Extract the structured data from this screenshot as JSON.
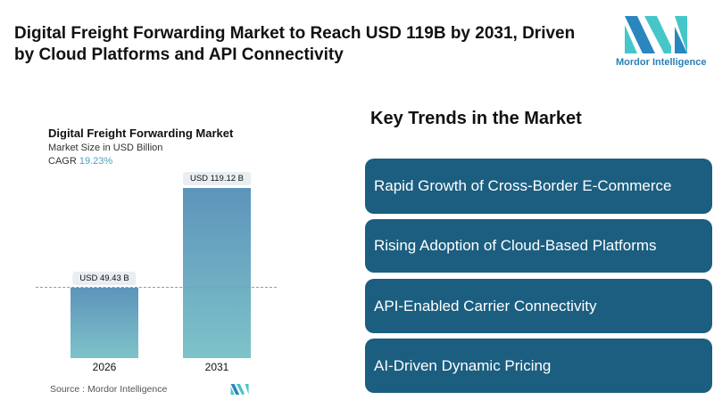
{
  "header": {
    "title": "Digital Freight Forwarding Market to Reach USD 119B by 2031, Driven by Cloud Platforms and API Connectivity",
    "logo_text": "Mordor Intelligence"
  },
  "chart_data": {
    "type": "bar",
    "title": "Digital Freight Forwarding Market",
    "subtitle": "Market Size in USD Billion",
    "cagr_label": "CAGR",
    "cagr_value": "19.23%",
    "categories": [
      "2026",
      "2031"
    ],
    "values": [
      49.43,
      119.12
    ],
    "data_labels": [
      "USD 49.43 B",
      "USD 119.12 B"
    ],
    "source": "Source :  Mordor Intelligence",
    "colors": {
      "bar_top": "#5d94bb",
      "bar_bottom": "#7ec3c9"
    }
  },
  "trends": {
    "heading": "Key Trends in the Market",
    "items": [
      "Rapid Growth of Cross-Border E-Commerce",
      "Rising Adoption of Cloud-Based Platforms",
      "API-Enabled Carrier Connectivity",
      "AI-Driven Dynamic Pricing"
    ],
    "box_color": "#1b5e80"
  }
}
